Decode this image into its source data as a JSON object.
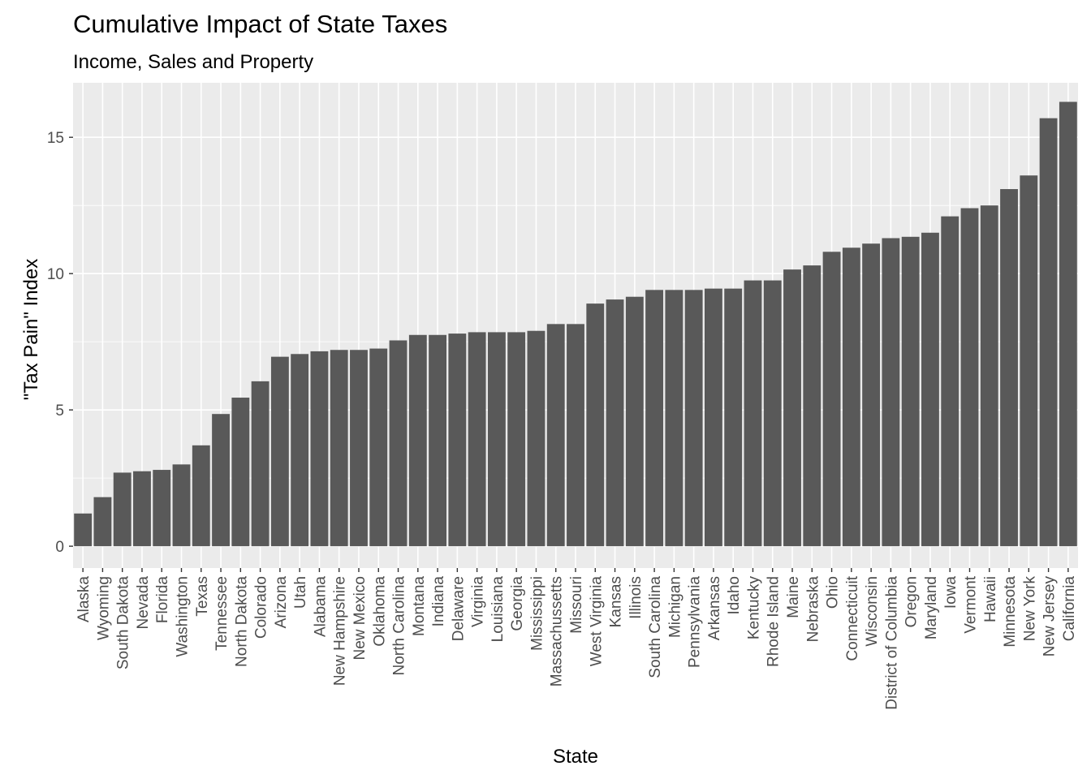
{
  "chart_data": {
    "type": "bar",
    "title": "Cumulative Impact of State Taxes",
    "subtitle": "Income, Sales and Property",
    "xlabel": "State",
    "ylabel": "\"Tax Pain\" Index",
    "ylim": [
      -0.8,
      17
    ],
    "yticks": [
      0,
      5,
      10,
      15
    ],
    "grid": true,
    "colors": {
      "panel": "#ebebeb",
      "grid_major": "#ffffff",
      "bar": "#595959",
      "tick": "#333333"
    },
    "categories": [
      "Alaska",
      "Wyoming",
      "South Dakota",
      "Nevada",
      "Florida",
      "Washington",
      "Texas",
      "Tennessee",
      "North Dakota",
      "Colorado",
      "Arizona",
      "Utah",
      "Alabama",
      "New Hampshire",
      "New Mexico",
      "Oklahoma",
      "North Carolina",
      "Montana",
      "Indiana",
      "Delaware",
      "Virginia",
      "Louisiana",
      "Georgia",
      "Mississippi",
      "Massachussetts",
      "Missouri",
      "West Virginia",
      "Kansas",
      "Illinois",
      "South Carolina",
      "Michigan",
      "Pennsylvania",
      "Arkansas",
      "Idaho",
      "Kentucky",
      "Rhode Island",
      "Maine",
      "Nebraska",
      "Ohio",
      "Connecticuit",
      "Wisconsin",
      "District of Columbia",
      "Oregon",
      "Maryland",
      "Iowa",
      "Vermont",
      "Hawaii",
      "Minnesota",
      "New York",
      "New Jersey",
      "California"
    ],
    "values": [
      1.2,
      1.8,
      2.7,
      2.75,
      2.8,
      3.0,
      3.7,
      4.85,
      5.45,
      6.05,
      6.95,
      7.05,
      7.15,
      7.2,
      7.2,
      7.25,
      7.55,
      7.75,
      7.75,
      7.8,
      7.85,
      7.85,
      7.85,
      7.9,
      8.15,
      8.15,
      8.9,
      9.05,
      9.15,
      9.4,
      9.4,
      9.4,
      9.45,
      9.45,
      9.75,
      9.75,
      10.15,
      10.3,
      10.8,
      10.95,
      11.1,
      11.3,
      11.35,
      11.5,
      12.1,
      12.4,
      12.5,
      13.1,
      13.6,
      15.7,
      16.3
    ]
  }
}
